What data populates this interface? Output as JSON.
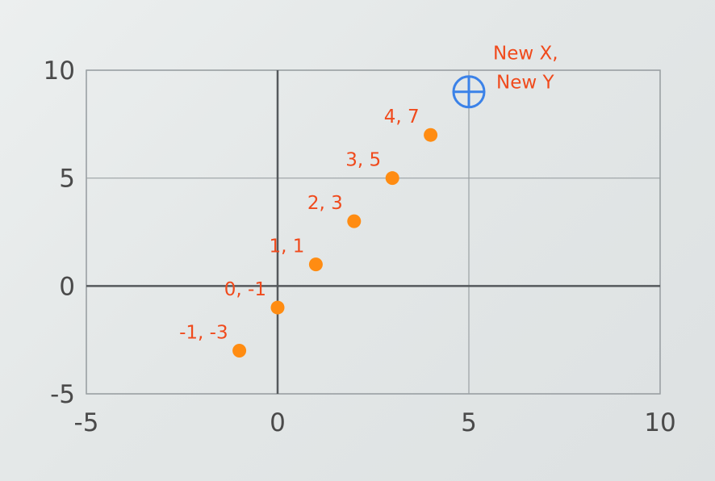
{
  "chart_data": {
    "type": "scatter",
    "xlim": [
      -5,
      10
    ],
    "ylim": [
      -5,
      10
    ],
    "x_ticks": [
      "-5",
      "0",
      "5",
      "10"
    ],
    "y_ticks": [
      "10",
      "5",
      "0",
      "-5"
    ],
    "grid": true,
    "points": [
      {
        "x": -1,
        "y": -3,
        "label": "-1, -3"
      },
      {
        "x": 0,
        "y": -1,
        "label": "0, -1"
      },
      {
        "x": 1,
        "y": 1,
        "label": "1, 1"
      },
      {
        "x": 2,
        "y": 3,
        "label": "2, 3"
      },
      {
        "x": 3,
        "y": 5,
        "label": "3, 5"
      },
      {
        "x": 4,
        "y": 7,
        "label": "4, 7"
      }
    ],
    "new_point": {
      "x": 5,
      "y": 9,
      "label_line1": "New X,",
      "label_line2": "New Y"
    },
    "colors": {
      "point": "#ff8c12",
      "label": "#f04a1c",
      "new_point": "#3b82e8",
      "grid": "#9aa0a3",
      "axis": "#55595c"
    }
  }
}
